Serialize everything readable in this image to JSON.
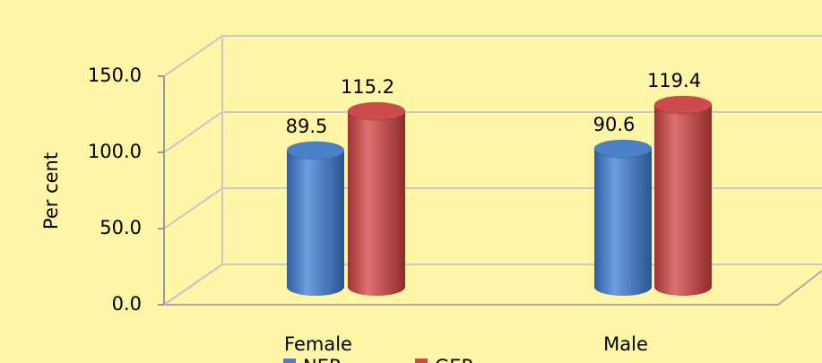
{
  "chart_data": {
    "type": "bar3d",
    "y_label": "Per cent",
    "categories": [
      "Female",
      "Male"
    ],
    "series": [
      {
        "name": "NER",
        "color": "#4a7fc9",
        "values": [
          89.5,
          90.6
        ]
      },
      {
        "name": "GER",
        "color": "#cc4c4c",
        "values": [
          115.2,
          119.4
        ]
      }
    ],
    "ylim": [
      0,
      150
    ],
    "yticks": [
      {
        "value": 0,
        "label": "0.0"
      },
      {
        "value": 50,
        "label": "50.0"
      },
      {
        "value": 100,
        "label": "100.0"
      },
      {
        "value": 150,
        "label": "150.0"
      }
    ],
    "grid": true,
    "legend": "bottom"
  }
}
